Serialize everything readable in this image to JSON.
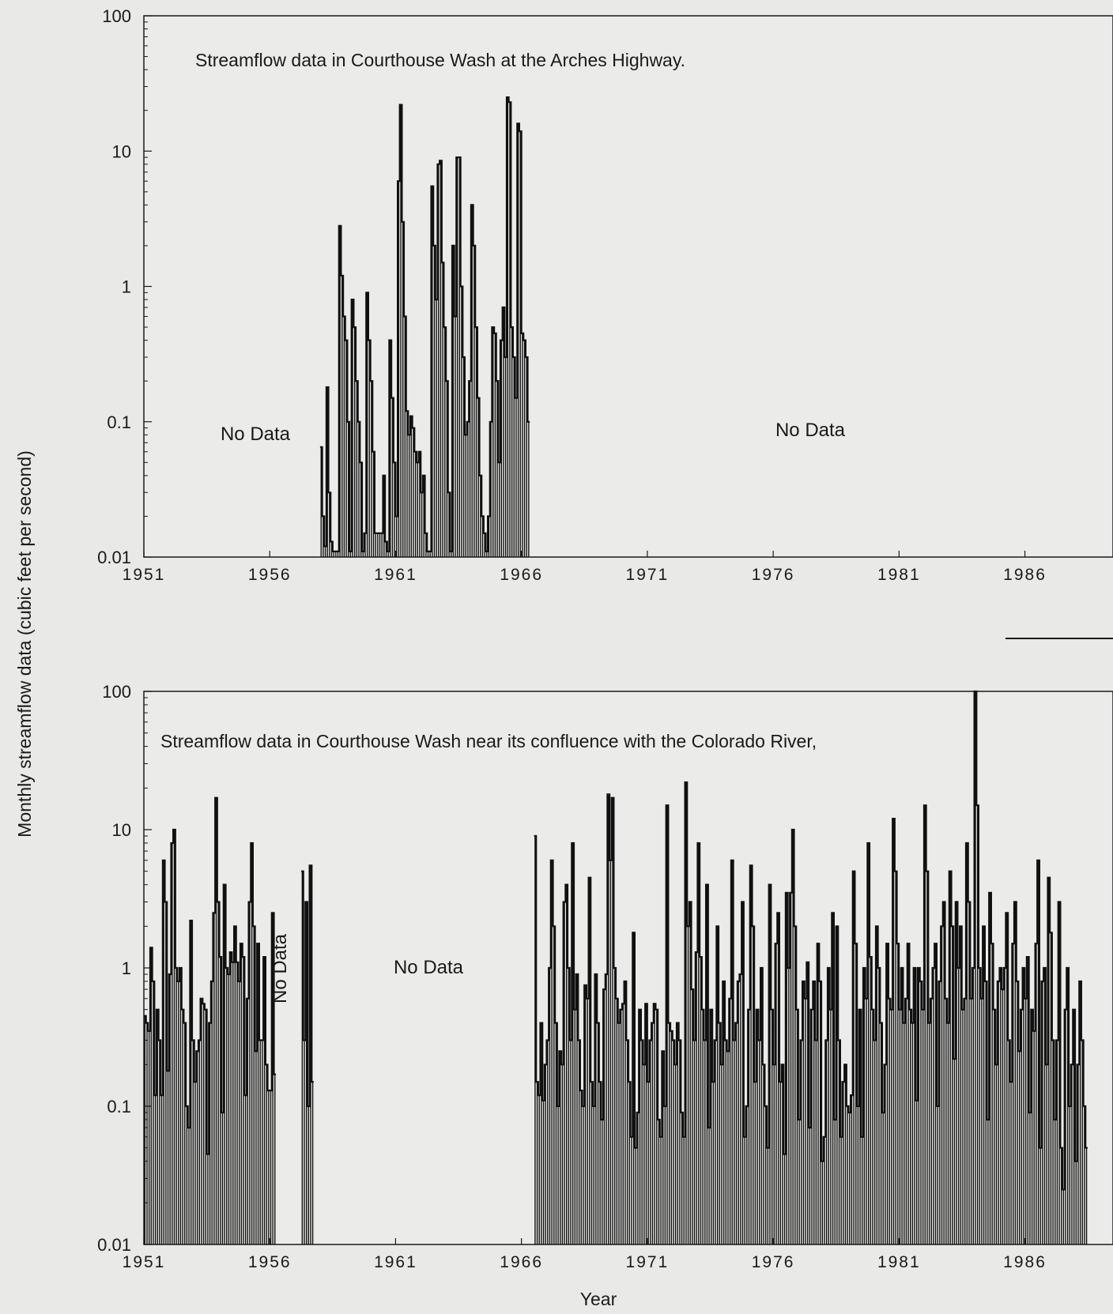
{
  "figure": {
    "ylabel": "Monthly streamflow data  (cubic feet per second)",
    "xlabel": "Year"
  },
  "chart_data": [
    {
      "type": "line",
      "title": "Streamflow data in Courthouse Wash at the Arches Highway.",
      "xlabel": "",
      "ylabel": "Monthly streamflow data  (cubic feet per second)",
      "yscale": "log",
      "ylim": [
        0.01,
        100
      ],
      "xlim": [
        1951,
        1989.5
      ],
      "yticks": [
        0.01,
        0.1,
        1,
        10,
        100
      ],
      "ytick_labels": [
        "0.01",
        "0.1",
        "1",
        "10",
        "100"
      ],
      "xticks": [
        1951,
        1956,
        1961,
        1966,
        1971,
        1976,
        1981,
        1986
      ],
      "xtick_labels": [
        "1951",
        "1956",
        "1961",
        "1966",
        "1971",
        "1976",
        "1981",
        "1986"
      ],
      "grid": false,
      "annotations": [
        {
          "text": "No Data",
          "x": 1955.3,
          "y": 0.1
        },
        {
          "text": "No Data",
          "x": 1978.0,
          "y": 0.105
        }
      ],
      "series": [
        {
          "x_start": 1958.0,
          "x_step": 0.0833,
          "values": [
            0.065,
            0.02,
            0.012,
            0.18,
            0.03,
            0.013,
            0.011,
            0.011,
            0.011,
            2.8,
            1.2,
            0.6,
            0.4,
            0.1,
            0.011,
            0.8,
            0.5,
            0.2,
            0.1,
            0.05,
            0.011,
            0.015,
            0.9,
            0.4,
            0.2,
            0.06,
            0.015,
            0.015,
            0.015,
            0.015,
            0.04,
            0.013,
            0.011,
            0.4,
            0.15,
            0.05,
            0.02,
            6.0,
            22.0,
            3.0,
            0.6,
            0.12,
            0.08,
            0.11,
            0.09,
            0.06,
            0.05,
            0.06,
            0.03,
            0.04,
            0.015,
            0.011,
            0.011,
            5.5,
            2.0,
            0.8,
            8.0,
            8.5,
            1.5,
            0.5,
            0.2,
            0.03,
            0.011,
            2.0,
            0.6,
            9.0,
            9.0,
            1.0,
            0.3,
            0.08,
            0.1,
            0.2,
            4.0,
            2.0,
            0.5,
            0.15,
            0.04,
            0.02,
            0.015,
            0.011,
            0.02,
            0.1,
            0.5,
            0.45,
            0.2,
            0.05,
            0.4,
            0.7,
            0.3,
            25.0,
            23.0,
            0.5,
            0.3,
            0.15,
            16.0,
            14.0,
            0.45,
            0.4,
            0.3,
            0.1
          ]
        }
      ]
    },
    {
      "type": "line",
      "title": "Streamflow data in Courthouse Wash near its confluence with the Colorado River,",
      "xlabel": "Year",
      "ylabel": "Monthly streamflow data  (cubic feet per second)",
      "yscale": "log",
      "ylim": [
        0.01,
        100
      ],
      "xlim": [
        1951,
        1989.5
      ],
      "yticks": [
        0.01,
        0.1,
        1,
        10,
        100
      ],
      "ytick_labels": [
        "0.01",
        "0.1",
        "1",
        "10",
        "100"
      ],
      "xticks": [
        1951,
        1956,
        1961,
        1966,
        1971,
        1976,
        1981,
        1986
      ],
      "xtick_labels": [
        "1951",
        "1956",
        "1961",
        "1966",
        "1971",
        "1976",
        "1981",
        "1986"
      ],
      "grid": false,
      "annotations": [
        {
          "text": "No Data",
          "x": 1956.0,
          "y": 1.0,
          "rotated": true
        },
        {
          "text": "No Data",
          "x": 1962.3,
          "y": 1.0
        }
      ],
      "series": [
        {
          "x_start": 1951.0,
          "x_step": 0.0833,
          "values": [
            0.45,
            0.4,
            0.35,
            1.4,
            0.8,
            0.12,
            0.5,
            0.3,
            0.12,
            6.0,
            3.0,
            0.18,
            0.9,
            8.0,
            10.0,
            1.0,
            0.8,
            1.0,
            0.5,
            0.4,
            0.1,
            0.07,
            2.2,
            0.3,
            0.15,
            0.25,
            0.3,
            0.6,
            0.55,
            0.5,
            0.045,
            0.4,
            0.8,
            2.5,
            17.0,
            3.0,
            1.2,
            0.09,
            4.0,
            1.0,
            0.9,
            1.3,
            1.1,
            2.0,
            1.1,
            0.8,
            1.5,
            1.2,
            0.12,
            0.6,
            3.0,
            8.0,
            2.0,
            0.25,
            1.5,
            0.3,
            0.3,
            1.2,
            0.2,
            0.13,
            0.13,
            2.5,
            0.17
          ]
        },
        {
          "x_start": 1957.25,
          "x_step": 0.0833,
          "values": [
            5.0,
            0.3,
            3.0,
            0.1,
            5.5,
            0.15
          ]
        },
        {
          "x_start": 1966.5,
          "x_step": 0.0833,
          "values": [
            9.0,
            0.15,
            0.12,
            0.4,
            0.11,
            0.2,
            0.3,
            1.0,
            6.0,
            2.0,
            0.4,
            0.1,
            0.25,
            0.2,
            3.0,
            4.0,
            1.0,
            0.3,
            8.0,
            0.5,
            0.9,
            0.3,
            0.13,
            0.1,
            0.75,
            0.6,
            4.5,
            0.15,
            0.1,
            0.9,
            0.4,
            0.15,
            0.08,
            0.7,
            0.9,
            18.0,
            6.0,
            17.0,
            1.0,
            0.6,
            0.4,
            0.5,
            0.55,
            0.8,
            0.3,
            0.15,
            0.06,
            1.8,
            0.05,
            0.09,
            0.5,
            0.3,
            0.2,
            0.55,
            0.15,
            0.3,
            0.4,
            0.55,
            0.5,
            0.08,
            0.06,
            0.25,
            0.1,
            15.0,
            0.4,
            0.35,
            0.3,
            0.2,
            0.4,
            0.3,
            0.09,
            0.06,
            22.0,
            2.0,
            3.0,
            0.7,
            0.3,
            1.3,
            8.0,
            1.2,
            0.5,
            0.3,
            4.0,
            0.07,
            0.5,
            0.15,
            0.3,
            2.0,
            0.4,
            0.2,
            0.8,
            0.3,
            0.25,
            0.6,
            6.0,
            0.3,
            0.4,
            0.8,
            0.9,
            3.0,
            0.06,
            0.1,
            0.5,
            5.5,
            2.0,
            0.15,
            0.5,
            0.3,
            1.0,
            0.2,
            0.1,
            0.05,
            4.0,
            0.5,
            0.2,
            1.5,
            2.5,
            0.15,
            0.2,
            0.045,
            3.5,
            1.0,
            3.5,
            10.0,
            2.0,
            0.5,
            0.08,
            0.3,
            0.8,
            0.6,
            1.1,
            0.07,
            0.5,
            0.8,
            0.3,
            1.5,
            0.8,
            0.04,
            0.06,
            0.3,
            1.0,
            0.5,
            2.5,
            0.08,
            2.0,
            0.3,
            0.06,
            0.15,
            0.2,
            0.1,
            0.09,
            0.12,
            5.0,
            1.5,
            0.1,
            0.5,
            0.06,
            1.0,
            0.6,
            8.0,
            1.2,
            0.5,
            0.3,
            2.0,
            1.0,
            0.4,
            0.09,
            0.2,
            1.5,
            0.6,
            0.5,
            12.0,
            5.0,
            1.5,
            0.5,
            1.0,
            0.4,
            0.6,
            1.5,
            0.5,
            0.4,
            1.0,
            0.11,
            1.0,
            0.8,
            0.5,
            15.0,
            5.0,
            0.4,
            0.6,
            1.0,
            1.5,
            0.1,
            0.8,
            2.0,
            3.0,
            0.6,
            0.4,
            5.0,
            2.0,
            0.22,
            3.0,
            1.0,
            2.0,
            0.5,
            0.6,
            8.0,
            3.0,
            0.6,
            1.0,
            100.0,
            15.0,
            1.0,
            0.6,
            2.0,
            0.8,
            0.08,
            3.5,
            1.5,
            0.5,
            0.2,
            0.8,
            1.0,
            0.7,
            1.0,
            2.5,
            0.3,
            0.15,
            1.5,
            3.0,
            0.8,
            0.25,
            0.5,
            1.0,
            0.6,
            1.2,
            0.09,
            0.5,
            0.35,
            1.5,
            6.0,
            0.05,
            0.8,
            1.0,
            0.2,
            4.5,
            1.8,
            0.3,
            0.08,
            0.3,
            3.0,
            0.05,
            0.025,
            0.5,
            1.0,
            0.1,
            0.2,
            0.5,
            0.04,
            0.2,
            0.8,
            0.3,
            0.1,
            0.05
          ]
        }
      ]
    }
  ]
}
